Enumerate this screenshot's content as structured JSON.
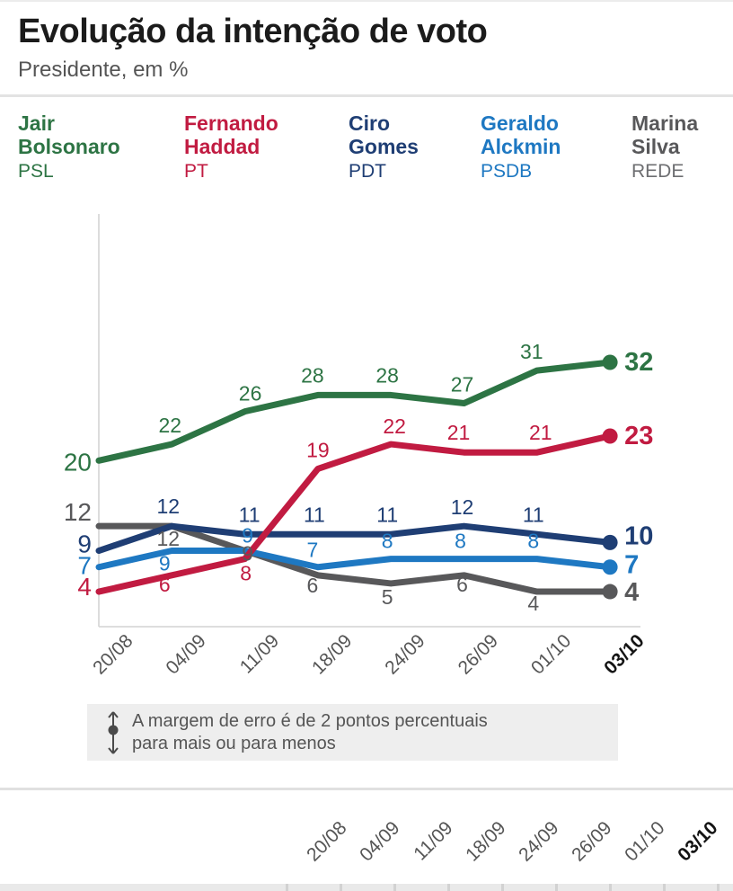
{
  "header": {
    "title": "Evolução da intenção de voto",
    "subtitle": "Presidente, em %"
  },
  "chart_data": {
    "type": "line",
    "title": "Evolução da intenção de voto",
    "subtitle": "Presidente, em %",
    "x_categories": [
      "20/08",
      "04/09",
      "11/09",
      "18/09",
      "24/09",
      "26/09",
      "01/10",
      "03/10"
    ],
    "highlighted_category": "03/10",
    "ylim": [
      0,
      49
    ],
    "grid": false,
    "legend_position": "top",
    "series": [
      {
        "id": "bolsonaro",
        "name": "Jair Bolsonaro",
        "name_lines": [
          "Jair",
          "Bolsonaro"
        ],
        "party": "PSL",
        "color": "#2d7444",
        "party_color": "#2d7444",
        "values": [
          20,
          22,
          26,
          28,
          28,
          27,
          31,
          32
        ]
      },
      {
        "id": "haddad",
        "name": "Fernando Haddad",
        "name_lines": [
          "Fernando",
          "Haddad"
        ],
        "party": "PT",
        "color": "#c11b41",
        "party_color": "#c11b41",
        "values": [
          4,
          6,
          8,
          19,
          22,
          21,
          21,
          23
        ]
      },
      {
        "id": "ciro",
        "name": "Ciro Gomes",
        "name_lines": [
          "Ciro",
          "Gomes"
        ],
        "party": "PDT",
        "color": "#1f3e74",
        "party_color": "#1f3e74",
        "values": [
          9,
          12,
          11,
          11,
          11,
          12,
          11,
          10
        ]
      },
      {
        "id": "alckmin",
        "name": "Geraldo Alckmin",
        "name_lines": [
          "Geraldo",
          "Alckmin"
        ],
        "party": "PSDB",
        "color": "#1e78c2",
        "party_color": "#1e78c2",
        "values": [
          7,
          9,
          9,
          7,
          8,
          8,
          8,
          7
        ]
      },
      {
        "id": "marina",
        "name": "Marina Silva",
        "name_lines": [
          "Marina",
          "Silva"
        ],
        "party": "REDE",
        "color": "#58585a",
        "party_color": "#6d6e71",
        "values": [
          12,
          12,
          9,
          6,
          5,
          6,
          4,
          4
        ]
      }
    ]
  },
  "error_note": {
    "icon": "error-margin-icon",
    "line1": "A margem de erro é de 2 pontos percentuais",
    "line2": "para mais ou para menos"
  },
  "second_chart": {
    "dates": [
      "20/08",
      "04/09",
      "11/09",
      "18/09",
      "24/09",
      "26/09",
      "01/10",
      "03/10"
    ],
    "highlighted_date": "03/10"
  }
}
